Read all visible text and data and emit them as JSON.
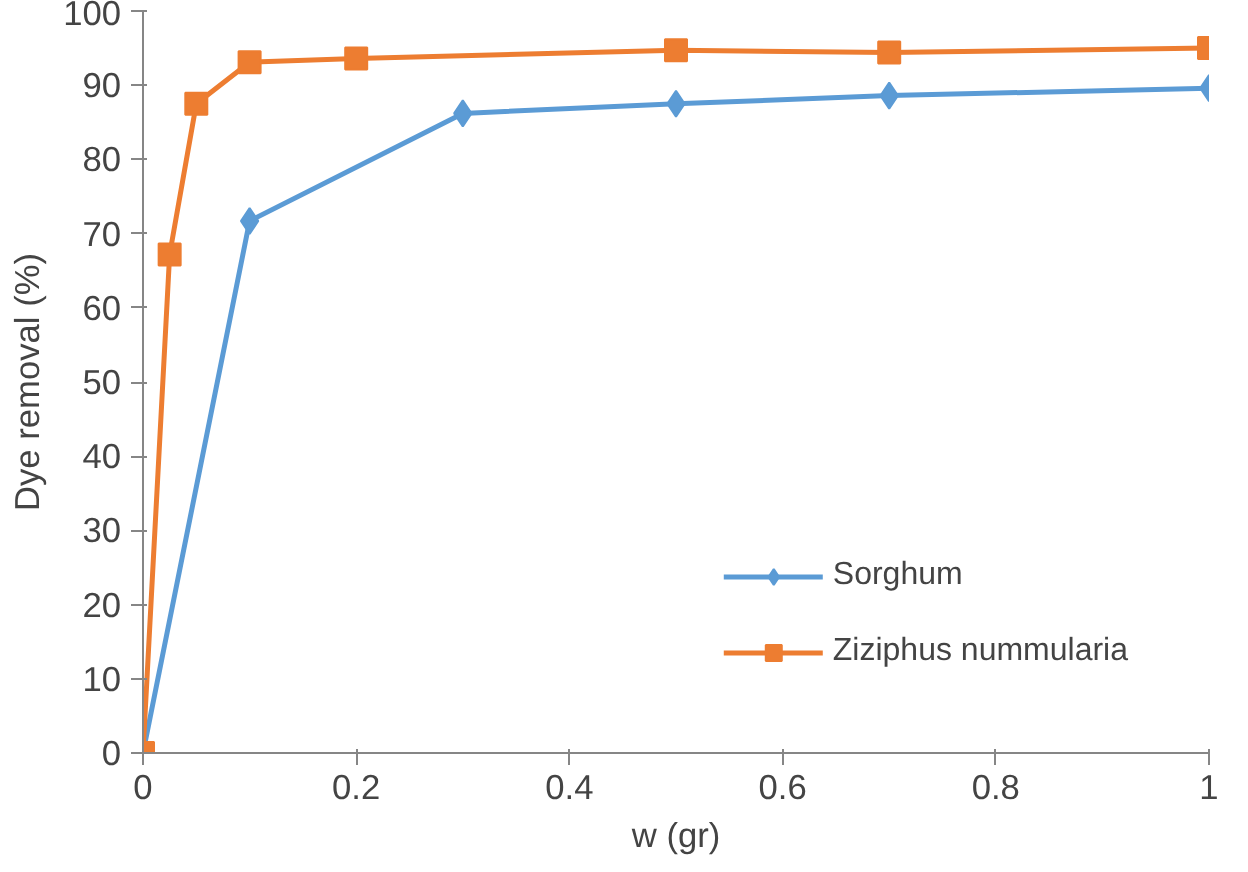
{
  "chart_data": {
    "type": "line",
    "xlabel": "w (gr)",
    "ylabel": "Dye removal (%)",
    "xlim": [
      0,
      1
    ],
    "xticks": [
      0,
      0.2,
      0.4,
      0.6,
      0.8,
      1
    ],
    "ylim": [
      0,
      100
    ],
    "yticks": [
      0,
      10,
      20,
      30,
      40,
      50,
      60,
      70,
      80,
      90,
      100
    ],
    "grid": false,
    "legend": "bottom right",
    "line_style": "solid",
    "series": [
      {
        "name": "Sorghum",
        "color": "#5b9bd5",
        "marker": "diamond",
        "x": [
          0,
          0.1,
          0.3,
          0.5,
          0.7,
          1
        ],
        "values": [
          0,
          71.7,
          86.2,
          87.5,
          88.6,
          89.6
        ]
      },
      {
        "name": "Ziziphus nummularia",
        "color": "#ed7d31",
        "marker": "square",
        "x": [
          0,
          0.025,
          0.05,
          0.1,
          0.2,
          0.5,
          0.7,
          1
        ],
        "values": [
          0,
          67.2,
          87.5,
          93.1,
          93.6,
          94.7,
          94.4,
          95.0
        ]
      }
    ]
  }
}
